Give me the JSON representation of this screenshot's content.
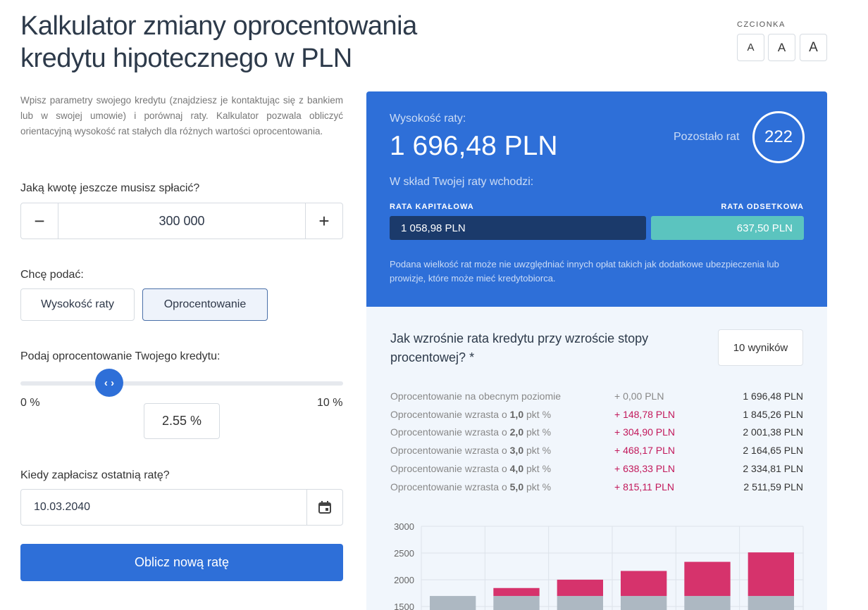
{
  "title": "Kalkulator zmiany oprocentowania kredytu hipotecznego w PLN",
  "font_size": {
    "label": "CZCIONKA",
    "buttons": [
      "A",
      "A",
      "A"
    ]
  },
  "intro": "Wpisz parametry swojego kredytu (znajdziesz je kontaktując się z bankiem lub w swojej umowie) i porównaj raty. Kalkulator pozwala obliczyć orientacyjną wysokość rat stałych dla różnych wartości oprocentowania.",
  "amount": {
    "label": "Jaką kwotę jeszcze musisz spłacić?",
    "value": "300 000",
    "minus": "−",
    "plus": "+"
  },
  "mode": {
    "label": "Chcę podać:",
    "options": [
      "Wysokość raty",
      "Oprocentowanie"
    ],
    "selected": "Oprocentowanie"
  },
  "rate": {
    "label": "Podaj oprocentowanie Twojego kredytu:",
    "min": "0 %",
    "max": "10 %",
    "value": "2.55 %",
    "slider_value": 2.55
  },
  "last": {
    "label": "Kiedy zapłacisz ostatnią ratę?",
    "value": "10.03.2040"
  },
  "calc_button": "Oblicz nową ratę",
  "result": {
    "label": "Wysokość raty:",
    "value": "1 696,48 PLN",
    "remaining_label": "Pozostało rat",
    "remaining": "222",
    "composition": "W skład Twojej raty wchodzi:",
    "capital_label": "RATA KAPITAŁOWA",
    "interest_label": "RATA ODSETKOWA",
    "capital": "1 058,98 PLN",
    "interest": "637,50 PLN",
    "note": "Podana wielkość rat może nie uwzględniać innych opłat takich jak dodatkowe ubezpieczenia lub prowizje, które może mieć kredytobiorca."
  },
  "scenarios": {
    "title": "Jak wzrośnie rata kredytu przy wzroście stopy procentowej? *",
    "results_button": "10 wyników",
    "rows": [
      {
        "prefix": "Oprocentowanie na obecnym poziomie",
        "bold": "",
        "suffix": "",
        "delta": "+ 0,00 PLN",
        "total": "1 696,48 PLN"
      },
      {
        "prefix": "Oprocentowanie wzrasta o ",
        "bold": "1,0",
        "suffix": " pkt %",
        "delta": "+ 148,78 PLN",
        "total": "1 845,26 PLN"
      },
      {
        "prefix": "Oprocentowanie wzrasta o ",
        "bold": "2,0",
        "suffix": " pkt %",
        "delta": "+ 304,90 PLN",
        "total": "2 001,38 PLN"
      },
      {
        "prefix": "Oprocentowanie wzrasta o ",
        "bold": "3,0",
        "suffix": " pkt %",
        "delta": "+ 468,17 PLN",
        "total": "2 164,65 PLN"
      },
      {
        "prefix": "Oprocentowanie wzrasta o ",
        "bold": "4,0",
        "suffix": " pkt %",
        "delta": "+ 638,33 PLN",
        "total": "2 334,81 PLN"
      },
      {
        "prefix": "Oprocentowanie wzrasta o ",
        "bold": "5,0",
        "suffix": " pkt %",
        "delta": "+ 815,11 PLN",
        "total": "2 511,59 PLN"
      }
    ]
  },
  "chart_data": {
    "type": "bar",
    "stacked": true,
    "yticks": [
      "3000",
      "2500",
      "2000",
      "1500"
    ],
    "ylim_visible": [
      1500,
      3000
    ],
    "grid": true,
    "series": [
      {
        "values": [
          1696.48,
          1696.48,
          1696.48,
          1696.48,
          1696.48,
          1696.48
        ],
        "color": "#adb8c2"
      },
      {
        "values": [
          0,
          148.78,
          304.9,
          468.17,
          638.33,
          815.11
        ],
        "color": "#d6336c"
      }
    ]
  },
  "colors": {
    "accent": "#2e6fd8",
    "capital": "#1b3a6b",
    "interest": "#5bc4bf",
    "increase": "#c2185b"
  }
}
